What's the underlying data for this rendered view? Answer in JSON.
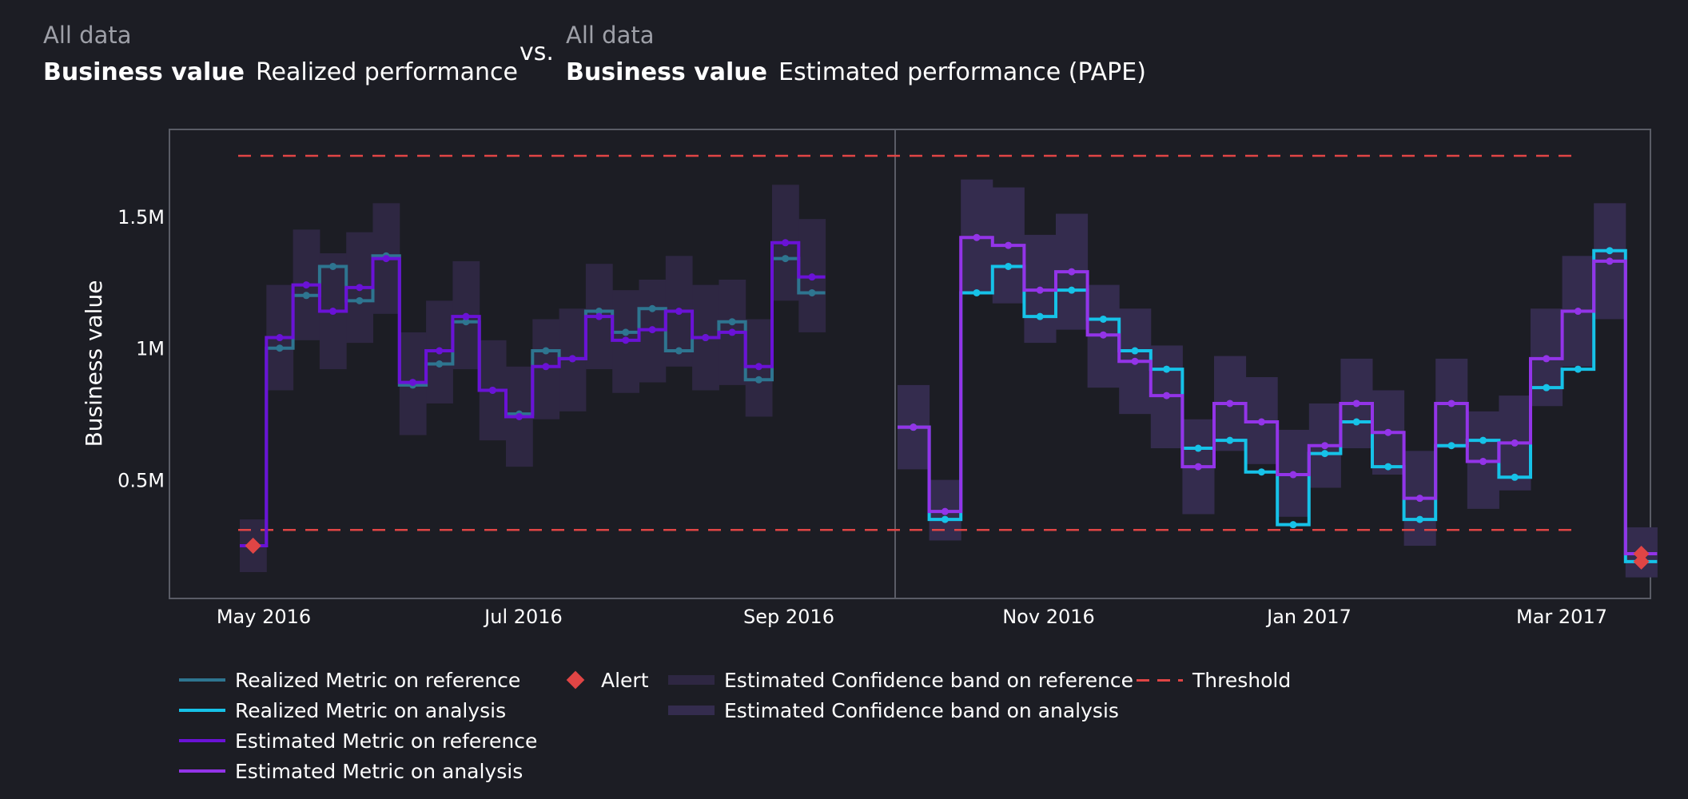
{
  "header": {
    "left": {
      "segment": "All data",
      "metric": "Business value",
      "perf": "Realized performance"
    },
    "vs": "vs.",
    "right": {
      "segment": "All data",
      "metric": "Business value",
      "perf": "Estimated performance (PAPE)"
    }
  },
  "legend": {
    "realized_ref": "Realized Metric on reference",
    "realized_ana": "Realized Metric on analysis",
    "est_ref": "Estimated Metric on reference",
    "est_ana": "Estimated Metric on analysis",
    "alert": "Alert",
    "band_ref": "Estimated Confidence band on reference",
    "band_ana": "Estimated Confidence band on analysis",
    "threshold": "Threshold"
  },
  "colors": {
    "realized_ref": "#2e7590",
    "realized_ana": "#16c2e8",
    "est_ref": "#6a12d6",
    "est_ana": "#9334e8",
    "band_ref": "#2e2742",
    "band_ana": "#342c4e",
    "threshold": "#e04545",
    "alert": "#e04545"
  },
  "chart_data": {
    "type": "line",
    "ylabel": "Business value",
    "x_ticks": [
      "May 2016",
      "Jul 2016",
      "Sep 2016",
      "Nov 2016",
      "Jan 2017",
      "Mar 2017"
    ],
    "y_ticks": [
      "0.5M",
      "1M",
      "1.5M"
    ],
    "y_tick_values": [
      500000,
      1000000,
      1500000
    ],
    "ylim": [
      50000,
      1830000
    ],
    "thresholds": {
      "upper": 1730000,
      "lower": 310000
    },
    "reference": {
      "realized": [
        250000,
        1000000,
        1200000,
        1310000,
        1180000,
        1350000,
        860000,
        940000,
        1100000,
        840000,
        750000,
        990000,
        960000,
        1140000,
        1060000,
        1150000,
        990000,
        1040000,
        1100000,
        880000,
        1340000,
        1210000
      ],
      "estimated": [
        250000,
        1040000,
        1240000,
        1140000,
        1230000,
        1340000,
        870000,
        990000,
        1120000,
        840000,
        740000,
        930000,
        960000,
        1120000,
        1030000,
        1070000,
        1140000,
        1040000,
        1060000,
        930000,
        1400000,
        1270000
      ],
      "band_upper": [
        350000,
        1240000,
        1450000,
        1360000,
        1440000,
        1550000,
        1060000,
        1180000,
        1330000,
        1030000,
        930000,
        1110000,
        1150000,
        1320000,
        1220000,
        1260000,
        1350000,
        1240000,
        1260000,
        1110000,
        1620000,
        1490000
      ],
      "band_lower": [
        150000,
        840000,
        1030000,
        920000,
        1020000,
        1130000,
        670000,
        790000,
        920000,
        650000,
        550000,
        730000,
        760000,
        920000,
        830000,
        870000,
        930000,
        840000,
        860000,
        740000,
        1180000,
        1060000
      ],
      "alerts": [
        0
      ]
    },
    "analysis": {
      "realized": [
        700000,
        350000,
        1210000,
        1310000,
        1120000,
        1220000,
        1110000,
        990000,
        920000,
        620000,
        650000,
        530000,
        330000,
        600000,
        720000,
        550000,
        350000,
        630000,
        650000,
        510000,
        850000,
        920000,
        1370000,
        190000
      ],
      "estimated": [
        700000,
        380000,
        1420000,
        1390000,
        1220000,
        1290000,
        1050000,
        950000,
        820000,
        550000,
        790000,
        720000,
        520000,
        630000,
        790000,
        680000,
        430000,
        790000,
        570000,
        640000,
        960000,
        1140000,
        1330000,
        220000
      ],
      "band_upper": [
        860000,
        500000,
        1640000,
        1610000,
        1430000,
        1510000,
        1240000,
        1150000,
        1010000,
        730000,
        970000,
        890000,
        690000,
        790000,
        960000,
        840000,
        610000,
        960000,
        760000,
        820000,
        1150000,
        1350000,
        1550000,
        320000
      ],
      "band_lower": [
        540000,
        270000,
        1210000,
        1170000,
        1020000,
        1070000,
        850000,
        750000,
        620000,
        370000,
        610000,
        560000,
        360000,
        470000,
        620000,
        520000,
        250000,
        620000,
        390000,
        460000,
        780000,
        930000,
        1110000,
        130000
      ],
      "alerts": [
        23
      ]
    }
  }
}
